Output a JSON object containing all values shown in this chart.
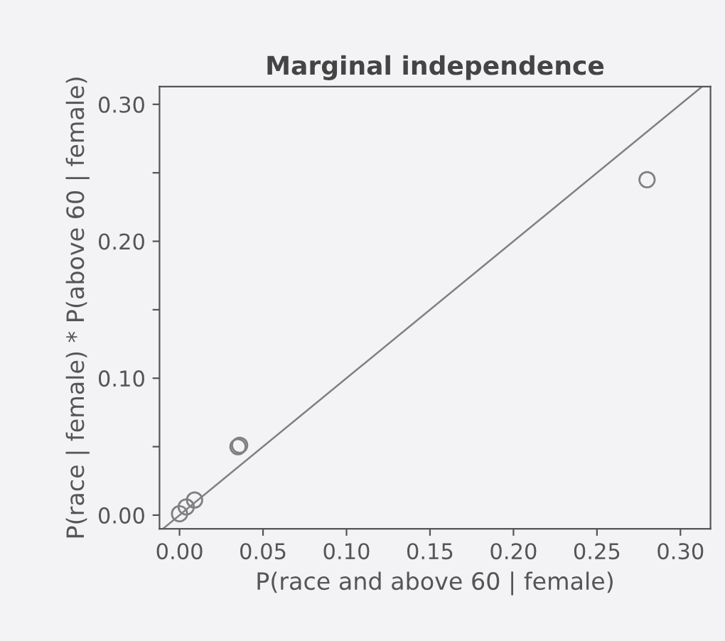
{
  "chart_data": {
    "type": "scatter",
    "title": "Marginal independence",
    "xlabel": "P(race and above 60 | female)",
    "ylabel": "P(race | female) * P(above 60 | female)",
    "xlim": [
      -0.012,
      0.318
    ],
    "ylim": [
      -0.01,
      0.313
    ],
    "xticks": [
      {
        "value": 0.0,
        "label": "0.00"
      },
      {
        "value": 0.05,
        "label": "0.05"
      },
      {
        "value": 0.1,
        "label": "0.10"
      },
      {
        "value": 0.15,
        "label": "0.15"
      },
      {
        "value": 0.2,
        "label": "0.20"
      },
      {
        "value": 0.25,
        "label": "0.25"
      },
      {
        "value": 0.3,
        "label": "0.30"
      }
    ],
    "yticks": [
      {
        "value": 0.0,
        "label": "0.00"
      },
      {
        "value": 0.05,
        "label": null
      },
      {
        "value": 0.1,
        "label": "0.10"
      },
      {
        "value": 0.15,
        "label": null
      },
      {
        "value": 0.2,
        "label": "0.20"
      },
      {
        "value": 0.25,
        "label": null
      },
      {
        "value": 0.3,
        "label": "0.30"
      }
    ],
    "grid": false,
    "series": [
      {
        "marker": "circle",
        "color": "#808080",
        "x": [
          0.28,
          0.035,
          0.036,
          0.009,
          0.004,
          0.0
        ],
        "values": [
          0.245,
          0.05,
          0.051,
          0.011,
          0.006,
          0.001
        ]
      },
      {
        "type": "line",
        "color": "#808080",
        "x": [
          -0.01,
          0.313
        ],
        "values": [
          -0.01,
          0.313
        ]
      }
    ]
  }
}
